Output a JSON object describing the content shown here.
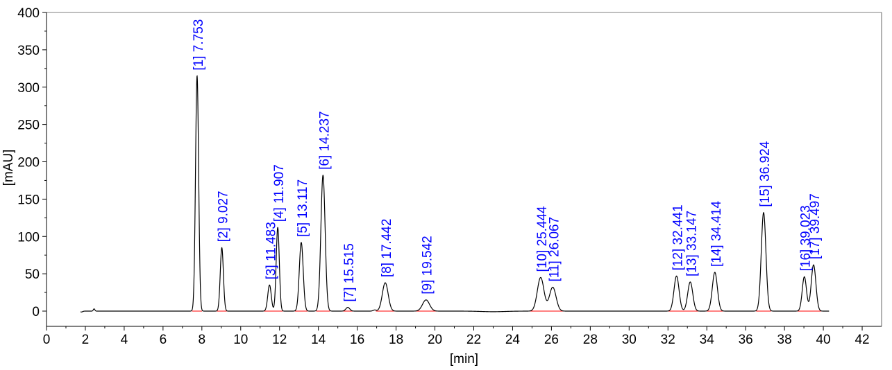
{
  "chart_data": {
    "type": "line",
    "xlabel": "[min]",
    "ylabel": "[mAU]",
    "xlim": [
      0,
      43
    ],
    "ylim": [
      -30,
      400
    ],
    "x_ticks": [
      "0",
      "2",
      "4",
      "6",
      "8",
      "10",
      "12",
      "14",
      "16",
      "18",
      "20",
      "22",
      "24",
      "26",
      "28",
      "30",
      "32",
      "34",
      "36",
      "38",
      "40",
      "42"
    ],
    "y_ticks": [
      "0",
      "50",
      "100",
      "150",
      "200",
      "250",
      "300",
      "350",
      "400"
    ],
    "grid": false,
    "colors": {
      "trace": "#000000",
      "labels": "#0000ff",
      "baseline": "#ff0000"
    },
    "peaks": [
      {
        "label": "[1]  7.753",
        "rt": 7.753,
        "height": 315,
        "width": 0.08
      },
      {
        "label": "[2]  9.027",
        "rt": 9.027,
        "height": 85,
        "width": 0.08
      },
      {
        "label": "[3]  11.483",
        "rt": 11.483,
        "height": 35,
        "width": 0.09
      },
      {
        "label": "[4]  11.907",
        "rt": 11.907,
        "height": 112,
        "width": 0.08
      },
      {
        "label": "[5]  13.117",
        "rt": 13.117,
        "height": 92,
        "width": 0.1
      },
      {
        "label": "[6]  14.237",
        "rt": 14.237,
        "height": 182,
        "width": 0.11
      },
      {
        "label": "[7]  15.515",
        "rt": 15.515,
        "height": 5,
        "width": 0.1
      },
      {
        "label": "[8]  17.442",
        "rt": 17.442,
        "height": 38,
        "width": 0.15
      },
      {
        "label": "[9]  19.542",
        "rt": 19.542,
        "height": 15,
        "width": 0.18
      },
      {
        "label": "[10]  25.444",
        "rt": 25.444,
        "height": 45,
        "width": 0.17
      },
      {
        "label": "[11]  26.067",
        "rt": 26.067,
        "height": 32,
        "width": 0.17
      },
      {
        "label": "[12]  32.441",
        "rt": 32.441,
        "height": 47,
        "width": 0.13
      },
      {
        "label": "[13]  33.147",
        "rt": 33.147,
        "height": 39,
        "width": 0.13
      },
      {
        "label": "[14]  34.414",
        "rt": 34.414,
        "height": 52,
        "width": 0.13
      },
      {
        "label": "[15]  36.924",
        "rt": 36.924,
        "height": 132,
        "width": 0.12
      },
      {
        "label": "[16]  39.023",
        "rt": 39.023,
        "height": 46,
        "width": 0.11
      },
      {
        "label": "[17]  39.497",
        "rt": 39.497,
        "height": 62,
        "width": 0.12
      }
    ]
  }
}
